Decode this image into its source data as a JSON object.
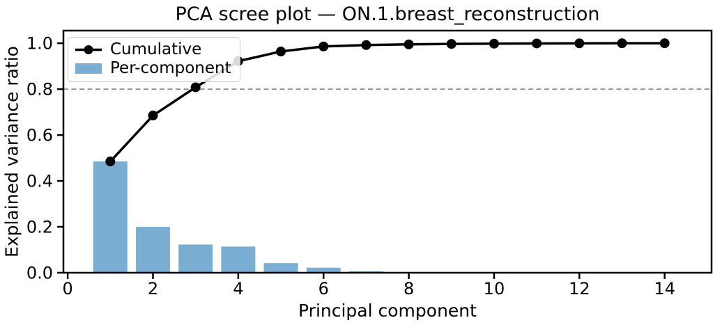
{
  "figure": {
    "title": "PCA scree plot — ON.1.breast_reconstruction",
    "xlabel": "Principal component",
    "ylabel": "Explained variance ratio"
  },
  "legend": {
    "position": "upper left",
    "entries": [
      {
        "label": "Cumulative",
        "swatch": "line-with-circle-marker",
        "color": "#000000"
      },
      {
        "label": "Per-component",
        "swatch": "filled-bar",
        "color": "#79aed2"
      }
    ]
  },
  "chart_data": {
    "type": "bar",
    "title": "PCA scree plot — ON.1.breast_reconstruction",
    "xlabel": "Principal component",
    "ylabel": "Explained variance ratio",
    "x": [
      1,
      2,
      3,
      4,
      5,
      6,
      7,
      8,
      9,
      10,
      11,
      12,
      13,
      14
    ],
    "series": [
      {
        "name": "Per-component",
        "type": "bar",
        "color": "#79aed2",
        "bar_width": 0.8,
        "values": [
          0.485,
          0.2,
          0.123,
          0.114,
          0.042,
          0.022,
          0.006,
          0.003,
          0.002,
          0.001,
          0.001,
          0.0005,
          0.0005,
          0.0003
        ]
      },
      {
        "name": "Cumulative",
        "type": "line",
        "color": "#000000",
        "marker": "circle",
        "line_width": 3.5,
        "marker_radius": 7,
        "values": [
          0.485,
          0.685,
          0.808,
          0.922,
          0.964,
          0.986,
          0.992,
          0.995,
          0.997,
          0.998,
          0.999,
          0.9995,
          1.0,
          1.0
        ]
      }
    ],
    "threshold_line": {
      "y": 0.8,
      "style": "dashed",
      "color": "#8c8c8c"
    },
    "xlim": [
      -0.1,
      15.1
    ],
    "ylim": [
      0,
      1.055
    ],
    "xticks": [
      0,
      2,
      4,
      6,
      8,
      10,
      12,
      14
    ],
    "xticklabels": [
      "0",
      "2",
      "4",
      "6",
      "8",
      "10",
      "12",
      "14"
    ],
    "yticks": [
      0.0,
      0.2,
      0.4,
      0.6,
      0.8,
      1.0
    ],
    "yticklabels": [
      "0.0",
      "0.2",
      "0.4",
      "0.6",
      "0.8",
      "1.0"
    ],
    "grid": false,
    "legend_position": "upper left"
  }
}
